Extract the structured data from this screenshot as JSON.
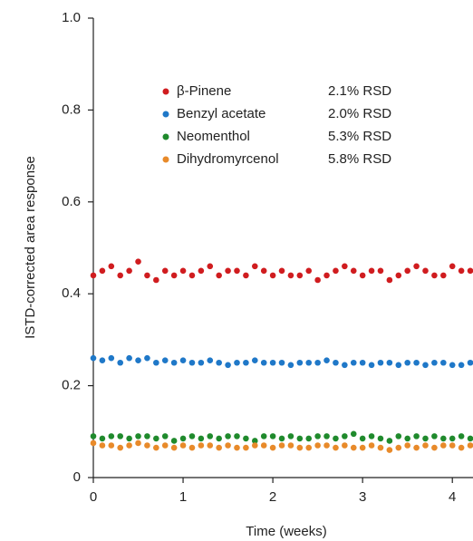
{
  "chart_data": {
    "type": "scatter",
    "x_label": "Time (weeks)",
    "y_label": "ISTD-corrected area response",
    "xlim": [
      0,
      4.23
    ],
    "ylim": [
      0,
      1
    ],
    "xticks": [
      0,
      1,
      2,
      3,
      4
    ],
    "yticks": [
      0,
      0.2,
      0.4,
      0.6,
      0.8,
      {
        "value": 1,
        "label": "1.0"
      }
    ],
    "x": [
      0,
      0.1,
      0.2,
      0.3,
      0.4,
      0.5,
      0.6,
      0.7,
      0.8,
      0.9,
      1,
      1.1,
      1.2,
      1.3,
      1.4,
      1.5,
      1.6,
      1.7,
      1.8,
      1.9,
      2,
      2.1,
      2.2,
      2.3,
      2.4,
      2.5,
      2.6,
      2.7,
      2.8,
      2.9,
      3,
      3.1,
      3.2,
      3.3,
      3.4,
      3.5,
      3.6,
      3.7,
      3.8,
      3.9,
      4,
      4.1,
      4.2
    ],
    "series": [
      {
        "name": "β-Pinene",
        "rsd_label": "2.1% RSD",
        "color": "#d01c1f",
        "values": [
          0.44,
          0.45,
          0.46,
          0.44,
          0.45,
          0.47,
          0.44,
          0.43,
          0.45,
          0.44,
          0.45,
          0.44,
          0.45,
          0.46,
          0.44,
          0.45,
          0.45,
          0.44,
          0.46,
          0.45,
          0.44,
          0.45,
          0.44,
          0.44,
          0.45,
          0.43,
          0.44,
          0.45,
          0.46,
          0.45,
          0.44,
          0.45,
          0.45,
          0.43,
          0.44,
          0.45,
          0.46,
          0.45,
          0.44,
          0.44,
          0.46,
          0.45,
          0.45
        ]
      },
      {
        "name": "Benzyl acetate",
        "rsd_label": "2.0% RSD",
        "color": "#1f78c8",
        "values": [
          0.26,
          0.255,
          0.26,
          0.25,
          0.26,
          0.255,
          0.26,
          0.25,
          0.255,
          0.25,
          0.255,
          0.25,
          0.25,
          0.255,
          0.25,
          0.245,
          0.25,
          0.25,
          0.255,
          0.25,
          0.25,
          0.25,
          0.245,
          0.25,
          0.25,
          0.25,
          0.255,
          0.25,
          0.245,
          0.25,
          0.25,
          0.245,
          0.25,
          0.25,
          0.245,
          0.25,
          0.25,
          0.245,
          0.25,
          0.25,
          0.245,
          0.245,
          0.25
        ]
      },
      {
        "name": "Neomenthol",
        "rsd_label": "5.3% RSD",
        "color": "#1f8a2c",
        "values": [
          0.09,
          0.085,
          0.09,
          0.09,
          0.085,
          0.09,
          0.09,
          0.085,
          0.09,
          0.08,
          0.085,
          0.09,
          0.085,
          0.09,
          0.085,
          0.09,
          0.09,
          0.085,
          0.08,
          0.09,
          0.09,
          0.085,
          0.09,
          0.085,
          0.085,
          0.09,
          0.09,
          0.085,
          0.09,
          0.095,
          0.085,
          0.09,
          0.085,
          0.08,
          0.09,
          0.085,
          0.09,
          0.085,
          0.09,
          0.085,
          0.085,
          0.09,
          0.085
        ]
      },
      {
        "name": "Dihydromyrcenol",
        "rsd_label": "5.8% RSD",
        "color": "#e88a2a",
        "values": [
          0.075,
          0.07,
          0.07,
          0.065,
          0.07,
          0.075,
          0.07,
          0.065,
          0.07,
          0.065,
          0.07,
          0.065,
          0.07,
          0.07,
          0.065,
          0.07,
          0.065,
          0.065,
          0.07,
          0.07,
          0.065,
          0.07,
          0.07,
          0.065,
          0.065,
          0.07,
          0.07,
          0.065,
          0.07,
          0.065,
          0.065,
          0.07,
          0.065,
          0.06,
          0.065,
          0.07,
          0.065,
          0.07,
          0.065,
          0.07,
          0.07,
          0.065,
          0.07
        ]
      }
    ]
  }
}
